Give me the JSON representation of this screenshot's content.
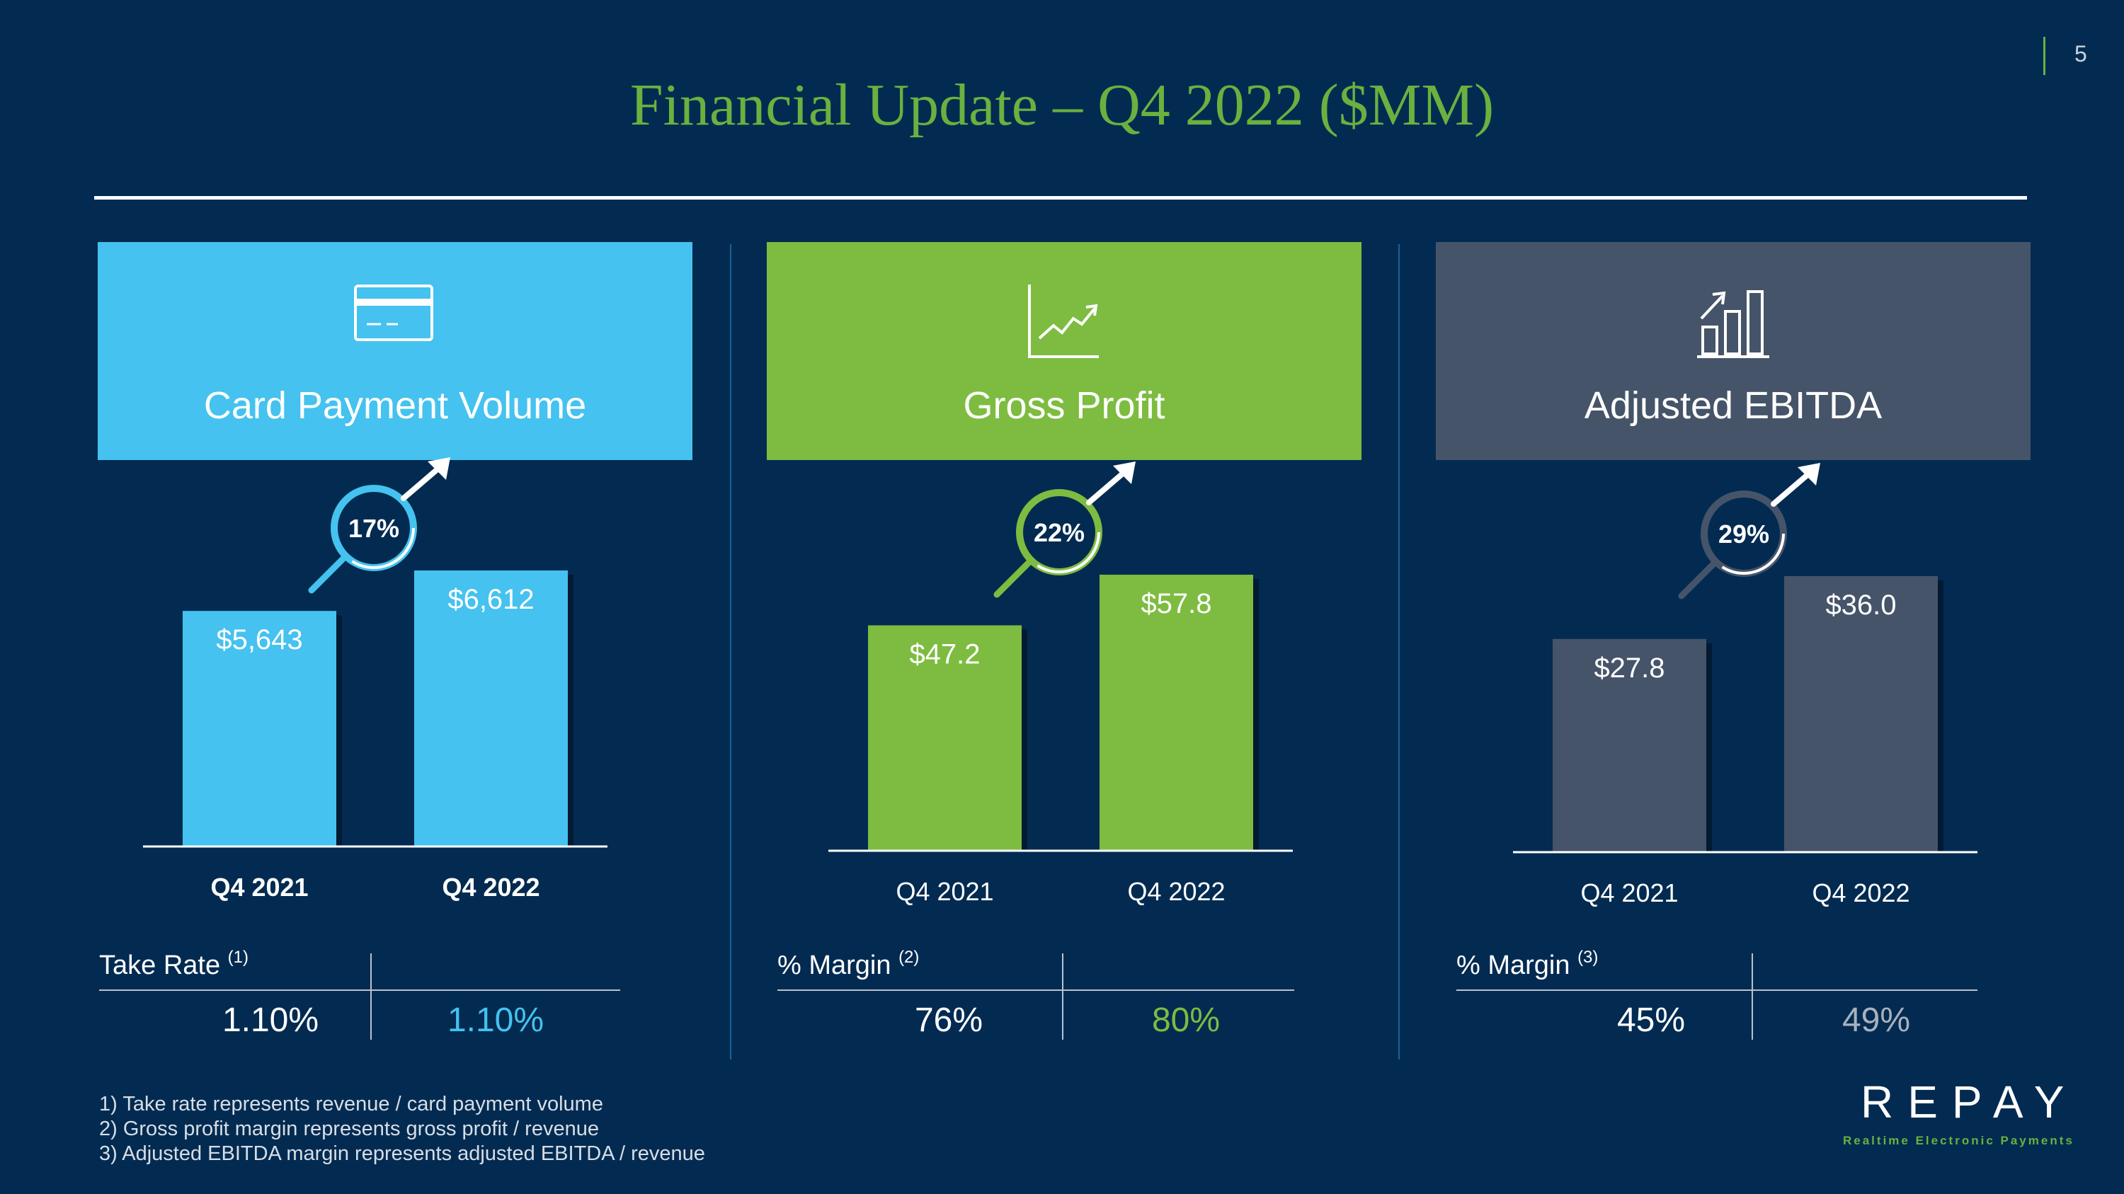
{
  "title": "Financial Update – Q4 2022 ($MM)",
  "page_number": "5",
  "colors": {
    "background": "#032b51",
    "title_green": "#6ab13f",
    "card_blue": "#45c2ef",
    "profit_green": "#7dbc40",
    "ebitda_gray": "#465469"
  },
  "panels": [
    {
      "header_label": "Card Payment Volume",
      "icon": "credit-card-icon",
      "growth": "17%",
      "metric_label": "Take Rate",
      "footnote_ref": "(1)",
      "values": [
        "1.10%",
        "1.10%"
      ]
    },
    {
      "header_label": "Gross Profit",
      "icon": "line-chart-icon",
      "growth": "22%",
      "metric_label": "% Margin",
      "footnote_ref": "(2)",
      "values": [
        "76%",
        "80%"
      ]
    },
    {
      "header_label": "Adjusted EBITDA",
      "icon": "bar-chart-icon",
      "growth": "29%",
      "metric_label": "% Margin",
      "footnote_ref": "(3)",
      "values": [
        "45%",
        "49%"
      ]
    }
  ],
  "chart_data": [
    {
      "type": "bar",
      "title": "Card Payment Volume",
      "categories": [
        "Q4 2021",
        "Q4 2022"
      ],
      "values": [
        5643,
        6612
      ],
      "labels": [
        "$5,643",
        "$6,612"
      ],
      "growth": "17%"
    },
    {
      "type": "bar",
      "title": "Gross Profit",
      "categories": [
        "Q4 2021",
        "Q4 2022"
      ],
      "values": [
        47.2,
        57.8
      ],
      "labels": [
        "$47.2",
        "$57.8"
      ],
      "growth": "22%"
    },
    {
      "type": "bar",
      "title": "Adjusted EBITDA",
      "categories": [
        "Q4 2021",
        "Q4 2022"
      ],
      "values": [
        27.8,
        36.0
      ],
      "labels": [
        "$27.8",
        "$36.0"
      ],
      "growth": "29%"
    }
  ],
  "footnotes": [
    "1)  Take rate represents revenue / card payment volume",
    "2) Gross profit margin represents gross profit / revenue",
    "3) Adjusted EBITDA margin represents adjusted EBITDA / revenue"
  ],
  "logo": {
    "name": "REPAY",
    "tagline": "Realtime Electronic Payments"
  }
}
